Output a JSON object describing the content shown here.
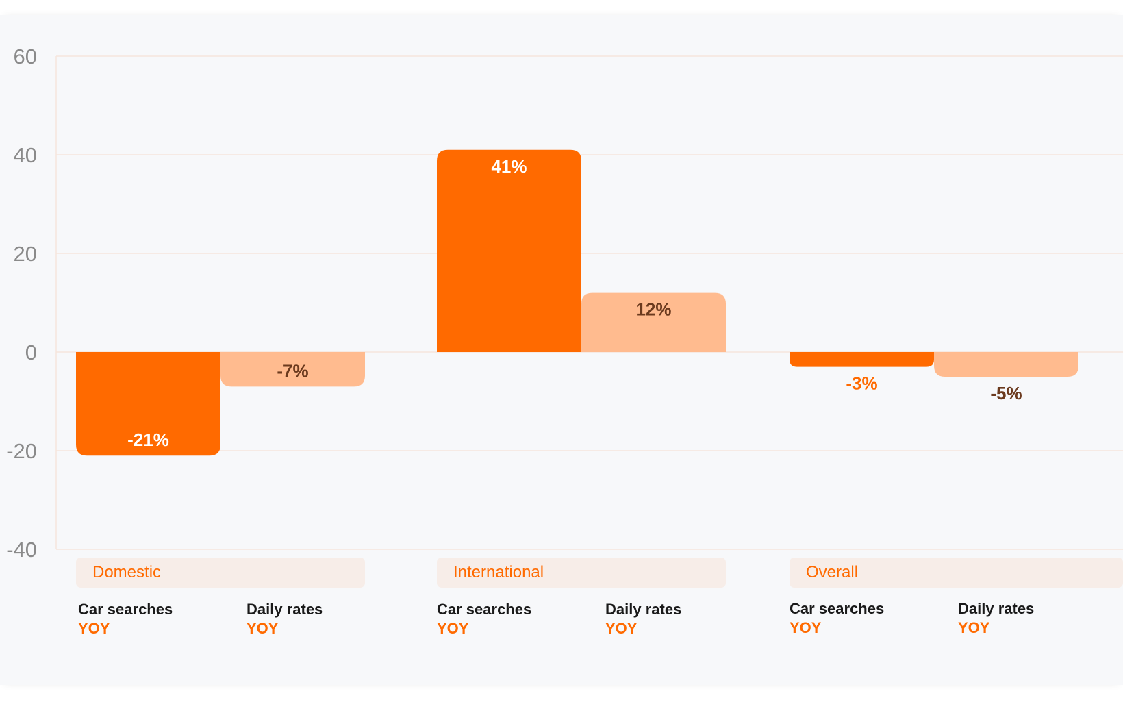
{
  "colors": {
    "primary": "#ff6a00",
    "secondary": "#ffbb8f",
    "primary_label": "#ffffff",
    "primary_label_outside": "#ff6a00",
    "secondary_label": "#6b3a1e",
    "grid": "#f6e6dc",
    "tick": "#8a8a8a"
  },
  "chart_data": {
    "type": "bar",
    "categories": [
      "Domestic",
      "International",
      "Overall"
    ],
    "series": [
      {
        "metric": "Car searches",
        "period": "YOY",
        "values": [
          -21,
          41,
          -3
        ],
        "labels": [
          "-21%",
          "41%",
          "-3%"
        ]
      },
      {
        "metric": "Daily rates",
        "period": "YOY",
        "values": [
          -7,
          12,
          -5
        ],
        "labels": [
          "-7%",
          "12%",
          "-5%"
        ]
      }
    ],
    "ylim": [
      -40,
      60
    ],
    "yticks": [
      60,
      40,
      20,
      0,
      -20,
      -40
    ],
    "grid": true
  },
  "group_labels": [
    "Domestic",
    "International",
    "Overall"
  ],
  "sub_labels": [
    {
      "metric": "Car searches",
      "period": "YOY"
    },
    {
      "metric": "Daily rates",
      "period": "YOY"
    },
    {
      "metric": "Car searches",
      "period": "YOY"
    },
    {
      "metric": "Daily rates",
      "period": "YOY"
    },
    {
      "metric": "Car searches",
      "period": "YOY"
    },
    {
      "metric": "Daily rates",
      "period": "YOY"
    }
  ]
}
